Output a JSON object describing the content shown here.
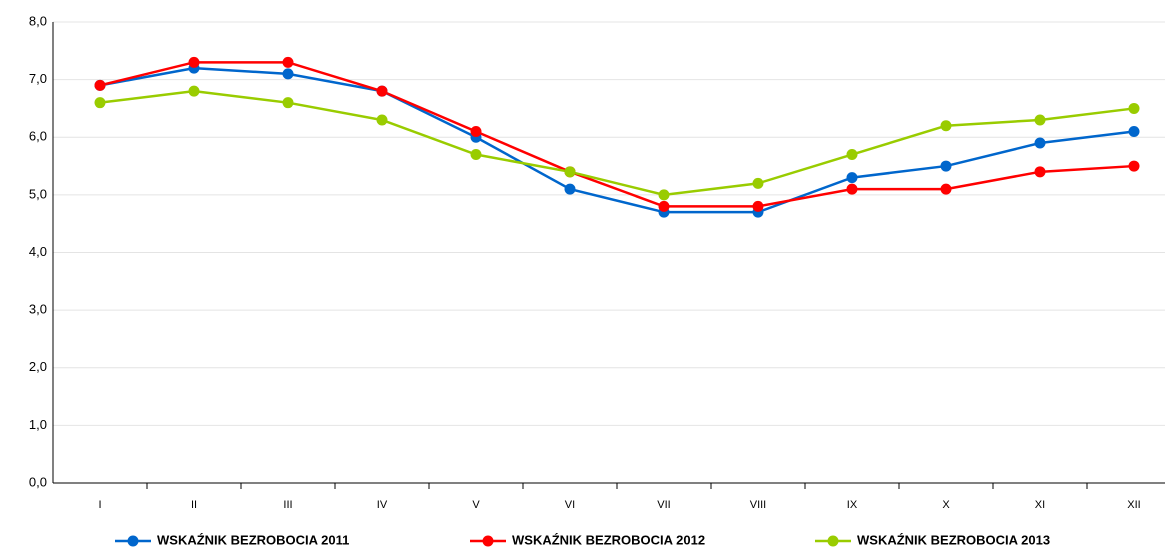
{
  "chart_data": {
    "type": "line",
    "categories": [
      "I",
      "II",
      "III",
      "IV",
      "V",
      "VI",
      "VII",
      "VIII",
      "IX",
      "X",
      "XI",
      "XII"
    ],
    "series": [
      {
        "name": "WSKAŹNIK BEZROBOCIA 2011",
        "color": "#0066cc",
        "values": [
          6.9,
          7.2,
          7.1,
          6.8,
          6.0,
          5.1,
          4.7,
          4.7,
          5.3,
          5.5,
          5.9,
          6.1
        ]
      },
      {
        "name": "WSKAŹNIK BEZROBOCIA 2012",
        "color": "#ff0000",
        "values": [
          6.9,
          7.3,
          7.3,
          6.8,
          6.1,
          5.4,
          4.8,
          4.8,
          5.1,
          5.1,
          5.4,
          5.5
        ]
      },
      {
        "name": "WSKAŹNIK BEZROBOCIA 2013",
        "color": "#99cc00",
        "values": [
          6.6,
          6.8,
          6.6,
          6.3,
          5.7,
          5.4,
          5.0,
          5.2,
          5.7,
          6.2,
          6.3,
          6.5
        ]
      }
    ],
    "ylim": [
      0,
      8
    ],
    "yticks": [
      {
        "value": 0,
        "label": "0,0"
      },
      {
        "value": 1,
        "label": "1,0"
      },
      {
        "value": 2,
        "label": "2,0"
      },
      {
        "value": 3,
        "label": "3,0"
      },
      {
        "value": 4,
        "label": "4,0"
      },
      {
        "value": 5,
        "label": "5,0"
      },
      {
        "value": 6,
        "label": "6,0"
      },
      {
        "value": 7,
        "label": "7,0"
      },
      {
        "value": 8,
        "label": "8,0"
      }
    ],
    "grid": true,
    "legend": "bottom"
  }
}
